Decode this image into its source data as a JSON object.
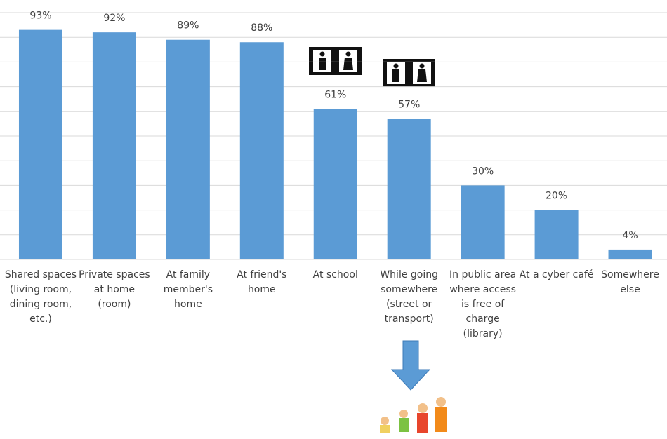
{
  "chart_data": {
    "type": "bar",
    "categories": [
      "Shared spaces (living room, dining room, etc.)",
      "Private spaces at home (room)",
      "At family member's home",
      "At friend's home",
      "At school",
      "While going somewhere (street or transport)",
      "In public area where access is free of charge (library)",
      "At a cyber café",
      "Somewhere else"
    ],
    "values": [
      93,
      92,
      89,
      88,
      61,
      57,
      30,
      20,
      4
    ],
    "value_labels": [
      "93%",
      "92%",
      "89%",
      "88%",
      "61%",
      "57%",
      "30%",
      "20%",
      "4%"
    ],
    "color": "#5b9bd5",
    "ylim": [
      0,
      100
    ],
    "yticks": [
      0,
      10,
      20,
      30,
      40,
      50,
      60,
      70,
      80,
      90,
      100
    ],
    "grid": true
  }
}
